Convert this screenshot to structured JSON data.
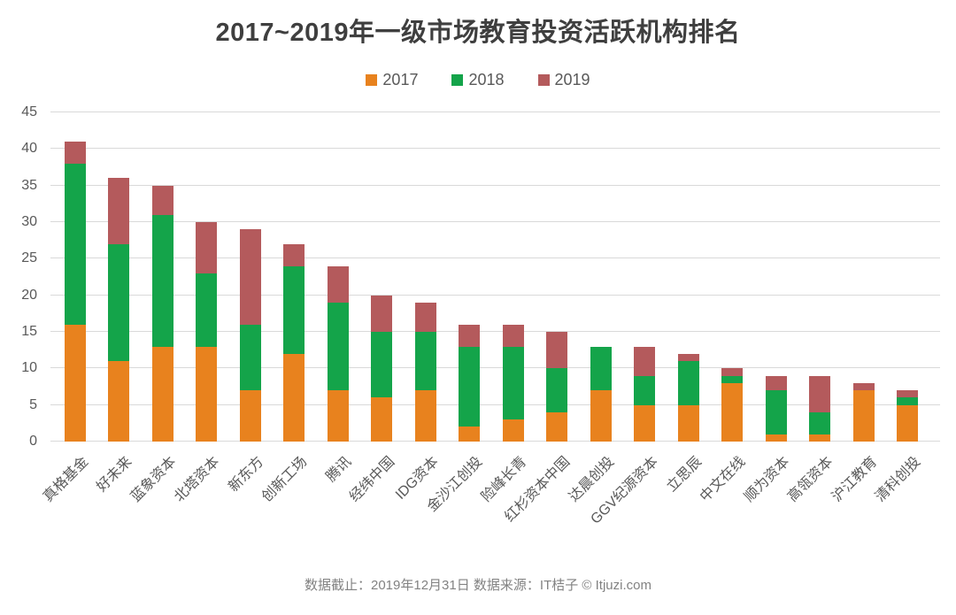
{
  "title": "2017~2019年一级市场教育投资活跃机构排名",
  "footer": "数据截止：2019年12月31日  数据来源：IT桔子 © Itjuzi.com",
  "colors": {
    "series_2017": "#e8821e",
    "series_2018": "#14a44a",
    "series_2019": "#b45a5c",
    "gridline": "#d9d9d9",
    "axis_text": "#595959",
    "title_text": "#3f3f3f",
    "footer_text": "#828282"
  },
  "chart_data": {
    "type": "bar",
    "stacked": true,
    "title": "2017~2019年一级市场教育投资活跃机构排名",
    "xlabel": "",
    "ylabel": "",
    "ylim": [
      0,
      45
    ],
    "ytick_step": 5,
    "grid": true,
    "legend_position": "top",
    "categories": [
      "真格基金",
      "好未来",
      "蓝象资本",
      "北塔资本",
      "新东方",
      "创新工场",
      "腾讯",
      "经纬中国",
      "IDG资本",
      "金沙江创投",
      "险峰长青",
      "红杉资本中国",
      "达晨创投",
      "GGV纪源资本",
      "立思辰",
      "中文在线",
      "顺为资本",
      "高瓴资本",
      "沪江教育",
      "清科创投"
    ],
    "series": [
      {
        "name": "2017",
        "color": "#e8821e",
        "values": [
          16,
          11,
          13,
          13,
          7,
          12,
          7,
          6,
          7,
          2,
          3,
          4,
          7,
          5,
          5,
          8,
          1,
          1,
          7,
          5
        ]
      },
      {
        "name": "2018",
        "color": "#14a44a",
        "values": [
          22,
          16,
          18,
          10,
          9,
          12,
          12,
          9,
          8,
          11,
          10,
          6,
          6,
          4,
          6,
          1,
          6,
          3,
          0,
          1
        ]
      },
      {
        "name": "2019",
        "color": "#b45a5c",
        "values": [
          3,
          9,
          4,
          7,
          13,
          3,
          5,
          5,
          4,
          3,
          3,
          5,
          0,
          4,
          1,
          1,
          2,
          5,
          1,
          1
        ]
      }
    ],
    "totals": [
      41,
      36,
      35,
      30,
      29,
      27,
      24,
      20,
      19,
      16,
      16,
      15,
      13,
      13,
      12,
      10,
      9,
      9,
      8,
      7
    ]
  }
}
